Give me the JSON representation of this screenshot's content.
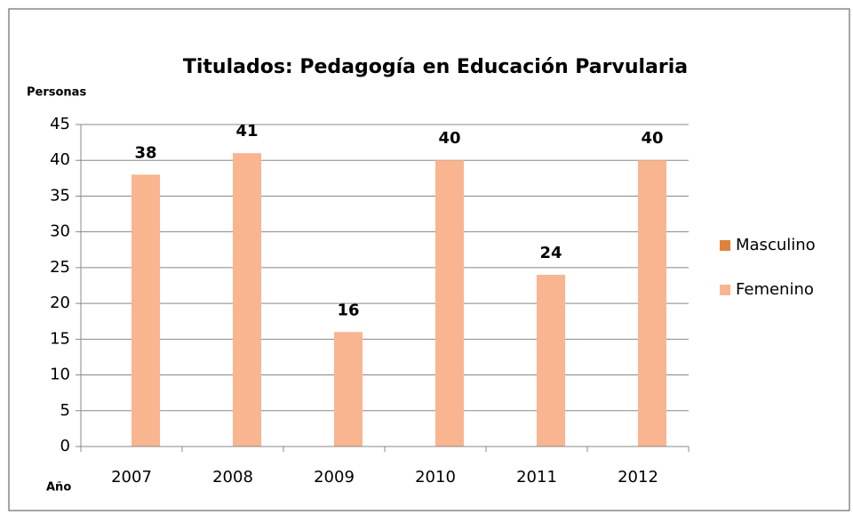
{
  "chart_data": {
    "type": "bar",
    "title": "Titulados: Pedagogía en Educación Parvularia",
    "ylabel": "Personas",
    "xlabel": "Año",
    "categories": [
      "2007",
      "2008",
      "2009",
      "2010",
      "2011",
      "2012"
    ],
    "series": [
      {
        "name": "Masculino",
        "color": "#e0823e",
        "values": [
          0,
          0,
          0,
          0,
          0,
          0
        ]
      },
      {
        "name": "Femenino",
        "color": "#f9b590",
        "values": [
          38,
          41,
          16,
          40,
          24,
          40
        ],
        "show_labels": true
      }
    ],
    "ylim": [
      0,
      45
    ],
    "yticks": [
      0,
      5,
      10,
      15,
      20,
      25,
      30,
      35,
      40,
      45
    ],
    "grid": true,
    "legend": "right"
  }
}
